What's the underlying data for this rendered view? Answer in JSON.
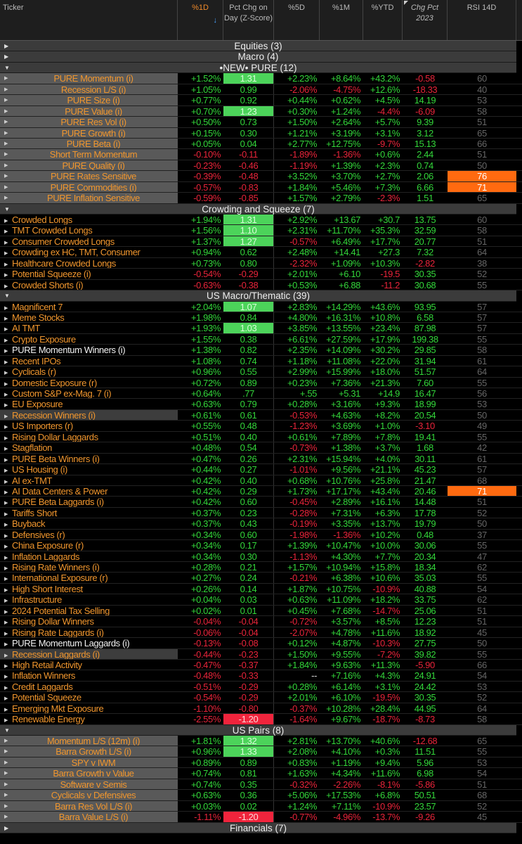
{
  "header": {
    "ticker": "Ticker",
    "d1": "%1D",
    "d1_sort_icon": "arrow-down",
    "zscore": "Pct Chg on Day (Z-Score)",
    "d5": "%5D",
    "m1": "%1M",
    "ytd": "%YTD",
    "chg2023": "Chg Pct 2023",
    "rsi": "RSI 14D"
  },
  "colors": {
    "positive": "#33d63a",
    "negative": "#e8243a",
    "ticker": "#f0962e",
    "rsi_overbought": "#ff6a10",
    "z_high": "#4cd35a",
    "z_low": "#f0243c"
  },
  "sections": [
    {
      "title": "Equities (3)",
      "expanded": false,
      "rows": []
    },
    {
      "title": "Macro (4)",
      "expanded": false,
      "rows": []
    },
    {
      "title": "•NEW• PURE (12)",
      "expanded": true,
      "style": "centered",
      "rows": [
        [
          "PURE Momentum (i)",
          "+1.52%",
          "1.31",
          "+2.23%",
          "+8.64%",
          "+43.2%",
          "-0.58",
          "60"
        ],
        [
          "Recession L/S (i)",
          "+1.05%",
          "0.99",
          "-2.06%",
          "-4.75%",
          "+12.6%",
          "-18.33",
          "40"
        ],
        [
          "PURE Size (i)",
          "+0.77%",
          "0.92",
          "+0.44%",
          "+0.62%",
          "+4.5%",
          "14.19",
          "53"
        ],
        [
          "PURE Value (i)",
          "+0.70%",
          "1.23",
          "+0.30%",
          "+1.24%",
          "-4.4%",
          "-6.09",
          "58"
        ],
        [
          "PURE Res Vol (i)",
          "+0.50%",
          "0.73",
          "+1.50%",
          "+2.64%",
          "+5.7%",
          "9.39",
          "51"
        ],
        [
          "PURE Growth (i)",
          "+0.15%",
          "0.30",
          "+1.21%",
          "+3.19%",
          "+3.1%",
          "3.12",
          "65"
        ],
        [
          "PURE Beta (i)",
          "+0.05%",
          "0.04",
          "+2.77%",
          "+12.75%",
          "-9.7%",
          "15.13",
          "66"
        ],
        [
          "Short Term Momentum",
          "-0.10%",
          "-0.11",
          "-1.89%",
          "-1.36%",
          "+0.6%",
          "2.44",
          "51"
        ],
        [
          "PURE Quality (i)",
          "-0.23%",
          "-0.46",
          "-1.19%",
          "+1.39%",
          "+2.3%",
          "0.74",
          "50"
        ],
        [
          "PURE Rates Sensitive",
          "-0.39%",
          "-0.48",
          "+3.52%",
          "+3.70%",
          "+2.7%",
          "2.06",
          "76"
        ],
        [
          "PURE Commodities (i)",
          "-0.57%",
          "-0.83",
          "+1.84%",
          "+5.46%",
          "+7.3%",
          "6.66",
          "71"
        ],
        [
          "PURE Inflation Sensitive",
          "-0.59%",
          "-0.85",
          "+1.57%",
          "+2.79%",
          "-2.3%",
          "1.51",
          "65"
        ]
      ]
    },
    {
      "title": "Crowding and Squeeze (7)",
      "expanded": true,
      "rows": [
        [
          "Crowded Longs",
          "+1.94%",
          "1.31",
          "+2.92%",
          "+13.67",
          "+30.7",
          "13.75",
          "60"
        ],
        [
          "TMT Crowded Longs",
          "+1.56%",
          "1.10",
          "+2.31%",
          "+11.70%",
          "+35.3%",
          "32.59",
          "58"
        ],
        [
          "Consumer Crowded Longs",
          "+1.37%",
          "1.27",
          "-0.57%",
          "+6.49%",
          "+17.7%",
          "20.77",
          "51"
        ],
        [
          "Crowding ex HC, TMT, Consumer",
          "+0.94%",
          "0.62",
          "+2.48%",
          "+14.41",
          "+27.3",
          "7.32",
          "64"
        ],
        [
          "Healthcare Crowded Longs",
          "+0.73%",
          "0.80",
          "-2.32%",
          "+1.09%",
          "+10.3%",
          "-2.82",
          "38"
        ],
        [
          "Potential Squeeze (i)",
          "-0.54%",
          "-0.29",
          "+2.01%",
          "+6.10",
          "-19.5",
          "30.35",
          "52"
        ],
        [
          "Crowded Shorts (i)",
          "-0.63%",
          "-0.38",
          "+0.53%",
          "+6.88",
          "-11.2",
          "30.68",
          "55"
        ]
      ]
    },
    {
      "title": "US Macro/Thematic (39)",
      "expanded": true,
      "rows": [
        [
          "Magnificent 7",
          "+2.04%",
          "1.07",
          "+2.83%",
          "+14.29%",
          "+43.6%",
          "93.95",
          "57"
        ],
        [
          "Meme Stocks",
          "+1.98%",
          "0.84",
          "+4.80%",
          "+16.31%",
          "+10.8%",
          "6.58",
          "57"
        ],
        [
          "AI TMT",
          "+1.93%",
          "1.03",
          "+3.85%",
          "+13.55%",
          "+23.4%",
          "87.98",
          "57"
        ],
        [
          "Crypto Exposure",
          "+1.55%",
          "0.38",
          "+6.61%",
          "+27.59%",
          "+17.9%",
          "199.38",
          "55"
        ],
        [
          "PURE Momentum Winners (i)",
          "+1.38%",
          "0.82",
          "+2.35%",
          "+14.09%",
          "+30.2%",
          "29.85",
          "58"
        ],
        [
          "Recent IPOs",
          "+1.08%",
          "0.74",
          "+1.18%",
          "+11.08%",
          "+22.0%",
          "31.94",
          "61"
        ],
        [
          "Cyclicals (r)",
          "+0.96%",
          "0.55",
          "+2.99%",
          "+15.99%",
          "+18.0%",
          "51.57",
          "64"
        ],
        [
          "Domestic Exposure (r)",
          "+0.72%",
          "0.89",
          "+0.23%",
          "+7.36%",
          "+21.3%",
          "7.60",
          "55"
        ],
        [
          "Custom S&P ex-Mag. 7 (i)",
          "+0.64%",
          ".77",
          "+.55",
          "+5.31",
          "+14.9",
          "16.47",
          "56"
        ],
        [
          "EU Exposure",
          "+0.63%",
          "0.79",
          "+0.28%",
          "+3.16%",
          "+9.3%",
          "18.99",
          "53"
        ],
        [
          "Recession Winners (i)",
          "+0.61%",
          "0.61",
          "-0.53%",
          "+4.63%",
          "+8.2%",
          "20.54",
          "50"
        ],
        [
          "US Importers (r)",
          "+0.55%",
          "0.48",
          "-1.23%",
          "+3.69%",
          "+1.0%",
          "-3.10",
          "49"
        ],
        [
          "Rising Dollar Laggards",
          "+0.51%",
          "0.40",
          "+0.61%",
          "+7.89%",
          "+7.8%",
          "19.41",
          "55"
        ],
        [
          "Stagflation",
          "+0.48%",
          "0.54",
          "-0.73%",
          "+1.38%",
          "+3.7%",
          "1.68",
          "42"
        ],
        [
          "PURE Beta Winners (i)",
          "+0.47%",
          "0.26",
          "+2.31%",
          "+15.94%",
          "+4.0%",
          "30.11",
          "61"
        ],
        [
          "US Housing (i)",
          "+0.44%",
          "0.27",
          "-1.01%",
          "+9.56%",
          "+21.1%",
          "45.23",
          "57"
        ],
        [
          "AI ex-TMT",
          "+0.42%",
          "0.40",
          "+0.68%",
          "+10.76%",
          "+25.8%",
          "21.47",
          "68"
        ],
        [
          "AI Data Centers & Power",
          "+0.42%",
          "0.29",
          "+1.73%",
          "+17.17%",
          "+43.4%",
          "20.46",
          "71"
        ],
        [
          "PURE Beta Laggards (i)",
          "+0.42%",
          "0.60",
          "-0.45%",
          "+2.89%",
          "+16.1%",
          "14.48",
          "51"
        ],
        [
          "Tariffs Short",
          "+0.37%",
          "0.23",
          "-0.28%",
          "+7.31%",
          "+6.3%",
          "17.78",
          "52"
        ],
        [
          "Buyback",
          "+0.37%",
          "0.43",
          "-0.19%",
          "+3.35%",
          "+13.7%",
          "19.79",
          "50"
        ],
        [
          "Defensives (r)",
          "+0.34%",
          "0.60",
          "-1.98%",
          "-1.36%",
          "+10.2%",
          "0.48",
          "37"
        ],
        [
          "China Exposure (r)",
          "+0.34%",
          "0.17",
          "+1.39%",
          "+10.47%",
          "+10.0%",
          "30.06",
          "55"
        ],
        [
          "Inflation Laggards",
          "+0.34%",
          "0.30",
          "-1.13%",
          "+4.30%",
          "+7.7%",
          "20.34",
          "47"
        ],
        [
          "Rising Rate Winners (i)",
          "+0.28%",
          "0.21",
          "+1.57%",
          "+10.94%",
          "+15.8%",
          "18.34",
          "62"
        ],
        [
          "International Exposure (r)",
          "+0.27%",
          "0.24",
          "-0.21%",
          "+6.38%",
          "+10.6%",
          "35.03",
          "55"
        ],
        [
          "High Short Interest",
          "+0.26%",
          "0.14",
          "+1.87%",
          "+10.75%",
          "-10.9%",
          "40.88",
          "54"
        ],
        [
          "Infrastructure",
          "+0.04%",
          "0.03",
          "+0.63%",
          "+11.09%",
          "+18.2%",
          "33.75",
          "62"
        ],
        [
          "2024 Potential Tax Selling",
          "+0.02%",
          "0.01",
          "+0.45%",
          "+7.68%",
          "-14.7%",
          "25.06",
          "51"
        ],
        [
          "Rising Dollar Winners",
          "-0.04%",
          "-0.04",
          "-0.72%",
          "+3.57%",
          "+8.5%",
          "12.23",
          "51"
        ],
        [
          "Rising Rate Laggards (i)",
          "-0.06%",
          "-0.04",
          "-2.07%",
          "+4.78%",
          "+11.6%",
          "18.92",
          "45"
        ],
        [
          "PURE Momentum Laggards (i)",
          "-0.13%",
          "-0.08",
          "+0.12%",
          "+4.87%",
          "-10.3%",
          "27.75",
          "50"
        ],
        [
          "Recession Laggards (i)",
          "-0.44%",
          "-0.23",
          "+1.50%",
          "+9.55%",
          "-7.2%",
          "39.82",
          "55"
        ],
        [
          "High Retail Activity",
          "-0.47%",
          "-0.37",
          "+1.84%",
          "+9.63%",
          "+11.3%",
          "-5.90",
          "66"
        ],
        [
          "Inflation Winners",
          "-0.48%",
          "-0.33",
          "--",
          "+7.16%",
          "+4.3%",
          "24.91",
          "54"
        ],
        [
          "Credit Laggards",
          "-0.51%",
          "-0.29",
          "+0.28%",
          "+6.14%",
          "+3.1%",
          "24.42",
          "53"
        ],
        [
          "Potential Squeeze",
          "-0.54%",
          "-0.29",
          "+2.01%",
          "+6.10%",
          "-19.5%",
          "30.35",
          "52"
        ],
        [
          "Emerging Mkt Exposure",
          "-1.10%",
          "-0.80",
          "-0.37%",
          "+10.28%",
          "+28.4%",
          "44.95",
          "64"
        ],
        [
          "Renewable Energy",
          "-2.55%",
          "-1.20",
          "-1.64%",
          "+9.67%",
          "-18.7%",
          "-8.73",
          "58"
        ]
      ]
    },
    {
      "title": "US Pairs (8)",
      "expanded": true,
      "style": "centered",
      "rows": [
        [
          "Momentum L/S (12m) (i)",
          "+1.81%",
          "1.32",
          "+2.81%",
          "+13.70%",
          "+40.6%",
          "-12.68",
          "65"
        ],
        [
          "Barra Growth L/S (i)",
          "+0.96%",
          "1.33",
          "+2.08%",
          "+4.10%",
          "+0.3%",
          "11.51",
          "55"
        ],
        [
          "SPY v IWM",
          "+0.89%",
          "0.89",
          "+0.83%",
          "+1.19%",
          "+9.4%",
          "5.96",
          "53"
        ],
        [
          "Barra Growth v Value",
          "+0.74%",
          "0.81",
          "+1.63%",
          "+4.34%",
          "+11.6%",
          "6.98",
          "54"
        ],
        [
          "Software v Semis",
          "+0.74%",
          "0.35",
          "-0.32%",
          "-2.26%",
          "-8.1%",
          "-5.86",
          "51"
        ],
        [
          "Cyclicals v Defensives",
          "+0.63%",
          "0.36",
          "+5.06%",
          "+17.53%",
          "+6.8%",
          "50.51",
          "68"
        ],
        [
          "Barra Res Vol L/S (i)",
          "+0.03%",
          "0.02",
          "+1.24%",
          "+7.11%",
          "-10.9%",
          "23.57",
          "52"
        ],
        [
          "Barra Value L/S (i)",
          "-1.11%",
          "-1.20",
          "-0.77%",
          "-4.96%",
          "-13.7%",
          "-9.26",
          "45"
        ]
      ]
    },
    {
      "title": "Financials (7)",
      "expanded": false,
      "rows": []
    }
  ],
  "white_tickers": [
    "PURE Momentum Winners (i)",
    "PURE Momentum Laggards (i)"
  ],
  "highlighted_tickers": [
    "Recession Winners (i)",
    "Recession Laggards (i)"
  ]
}
